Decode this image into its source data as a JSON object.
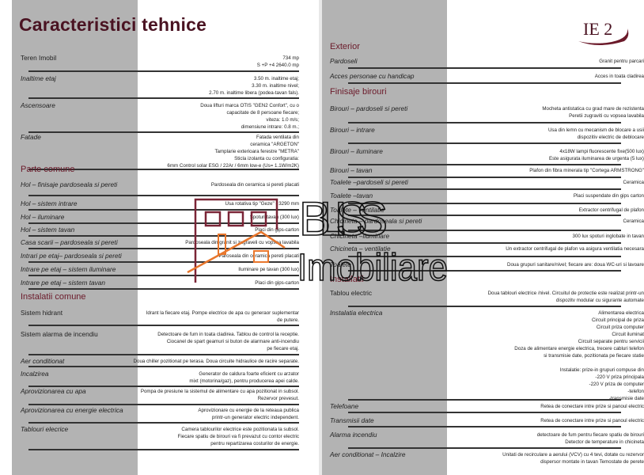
{
  "title": "Caracteristici tehnice",
  "logo_text": "IE 2",
  "watermark": {
    "line1": "BLISS",
    "line2": "Imobiliare",
    "house_color": "#7a2436",
    "roof_color": "#e8762c"
  },
  "colors": {
    "heading": "#6b1a2a",
    "title": "#4a1322",
    "column": "#b3b3b3"
  },
  "left": [
    {
      "label": "Teren Imobil",
      "plain": true,
      "value": [
        "734 mp",
        "S +P +4      2640.0 mp"
      ]
    },
    {
      "label": "Inaltime etaj",
      "value": [
        "3.50 m. inaltime etaj;",
        "3.30 m. inaltime nivel;",
        "2.70 m. inaltime libera (podea-tavan fals)."
      ]
    },
    {
      "label": "Ascensoare",
      "value": [
        "Doua lifturi marca OTIS \"GEN2 Confort\", cu o",
        "capacitate de 8 persoane fiecare;",
        "viteza: 1.0 m/s;",
        "dimensiune intrare: 0.8 m.;"
      ]
    },
    {
      "label": "Fatade",
      "value": [
        "Fatada ventilata din",
        "ceramica \"ARGETON\"",
        "Tamplarie exterioara ferestre \"METRA\"",
        "Sticla izolanta cu configuratia:",
        "6mm Control solar ESG / 22Ar / 6mm low-e (Us= 1.1W/m2K)"
      ]
    },
    {
      "heading": "Parte comune"
    },
    {
      "label": "Hol – finisaje pardoseala si pereti",
      "value": [
        "Pardoseala din ceramica si pereti placati"
      ]
    },
    {
      "label": "Hol – sistem intrare",
      "value": [
        "Usa rotativa tip \"Geze\" - 3290 mm"
      ]
    },
    {
      "label": "Hol – iluminare",
      "value": [
        "Spoturi tavan (300 lux)"
      ]
    },
    {
      "label": "Hol – sistem tavan",
      "value": [
        "Placi din gips-carton"
      ]
    },
    {
      "label": "Casa scarii – pardoseala si pereti",
      "value": [
        "Pardoseala din granit si zugraveli cu vopsea lavabila"
      ]
    },
    {
      "label": "Intrari pe etaj– pardoseala si pereti",
      "value": [
        "Paroseala din ceramica pereti placati"
      ]
    },
    {
      "label": "Intrare pe etaj – sistem iluminare",
      "value": [
        "Iluminare pe tavan (300 lux)"
      ]
    },
    {
      "label": "Intrare pe etaj – sistem tavan",
      "value": [
        "Placi din gips-carton"
      ]
    },
    {
      "heading": "Instalatii comune"
    },
    {
      "label": "Sistem hidrant",
      "plain": true,
      "value": [
        "Idrant la fiecare etaj. Pompe electrice de apa cu generaor suplementar",
        "de putere."
      ]
    },
    {
      "label": "Sistem alarma de incendiu",
      "plain": true,
      "value": [
        "Detectoare de fum in toata cladirea. Tablou de control la receptie.",
        "Ciocanel de spart geamuri si buton de alarmare anti-incendiu",
        "pe fiecare etaj."
      ]
    },
    {
      "label": "Aer conditionat",
      "value": [
        "Doua chiller pozitionat pe terasa. Doua circuite hidraulice de racire separate."
      ]
    },
    {
      "label": "Incalzirea",
      "value": [
        "Generator de caldura foarte eficient cu arzator",
        "mixt (motorina/gaz), pentru producerea apei calde."
      ]
    },
    {
      "label": "Aprovizionarea cu apa",
      "value": [
        "Pompa de presiune la sistemul de alimentare cu apa pozitionat in subsol.",
        "Rezervor prevesut."
      ]
    },
    {
      "label": "Aprovizionarea cu energie electrica",
      "value": [
        "Aprovizionare cu energie de la reteaua publica",
        "printr-un generator electric independent."
      ]
    },
    {
      "label": "Tablouri elecrice",
      "value": [
        "Camera tablourilor electrice este pozitionata la subsol.",
        "Fiecare spatiu de birouri va fi prevazut cu contor electric",
        "pentru repartizarea costurilor de energie."
      ]
    }
  ],
  "right": [
    {
      "heading": "Exterior"
    },
    {
      "label": "Pardoseli",
      "value": [
        "Granit pentru parcari"
      ]
    },
    {
      "label": "Acces personae cu handicap",
      "value": [
        "Acces in toata cladirea"
      ]
    },
    {
      "heading": "Finisaje birouri"
    },
    {
      "label": "Birouri – pardoseli si pereti",
      "value": [
        "Mocheta antistatica  cu grad mare de rezistenta",
        "Peretii zugraviti cu vopsea lavabila"
      ]
    },
    {
      "label": "Birouri – intrare",
      "value": [
        "Usa din lemn cu mecanism de blocare a usii",
        "dispozitiv electric de deblocare"
      ]
    },
    {
      "label": "Birouri – iluminare",
      "value": [
        "4x18W  lampi fluorescente fixe(500 lux)",
        "Este asigurata iluminarea de urgenta (5 lux)"
      ]
    },
    {
      "label": "Birouri – tavan",
      "value": [
        "Plafon din fibra minerala tip \"Cortega ARMSTRONG\""
      ]
    },
    {
      "label": "Toalete –pardoseli si pereti",
      "value": [
        "Ceramica"
      ]
    },
    {
      "label": "Toalete –tavan",
      "value": [
        "Placi suspendate din gips carton"
      ]
    },
    {
      "label": "Toalete – ventilatie",
      "value": [
        "Extractor centrifugal de plafon"
      ]
    },
    {
      "label": "Chicineta – pardoseala si pereti",
      "value": [
        "Ceramica"
      ]
    },
    {
      "label": "Chicineta –iluminare",
      "value": [
        "300 lux spoturi  inglobate in tavan"
      ]
    },
    {
      "label": "Chicineta – ventilatie",
      "value": [
        "Un extractor centrifugal de plafon va asigura ventilatia necesara"
      ]
    },
    {
      "label": "Toalete",
      "value": [
        "Doua grupuri sanitare/nivel; fiecare are: doua WC-uri si lavoare"
      ]
    },
    {
      "heading": "Installatii"
    },
    {
      "label": "Tablou electric",
      "plain": true,
      "value": [
        "Doua tablouri electrice /nivel. Circuitul de  protectie este realizat printr-un",
        "dispozitv modular cu sigurante automate"
      ]
    },
    {
      "label": "Instalatia electrica",
      "value": [
        "Alimentarea electrica",
        "Circuit principal de priza",
        "Circuit  priza computer",
        "Circuit iluminat",
        "Circuit separate pentru  servicii",
        "Doza de alimentare energie electrica, trecere cabluri telefon",
        "si transmisie date, pozitionata pe fiecare statie",
        "",
        "Instalatie: prize-in grupuri compuse din",
        "-220 V priza principala",
        "-220 V priza de computer",
        "-telefon",
        "-transmisie date"
      ]
    },
    {
      "label": "Telefoane",
      "value": [
        "Retea de conectare intre prize si panoul electric"
      ]
    },
    {
      "label": "Transmisii date",
      "value": [
        "Retea de conectare intre prize si panoul electric"
      ]
    },
    {
      "label": "Alarma incendiu",
      "value": [
        "detectoare de fum pentru fiecare spatiu de birouri",
        "Detector de temperature in chicineta"
      ]
    },
    {
      "label": "Aer conditionat – Incalzire",
      "value": [
        "Unitati  de recirculare a aerului (VCV) cu 4 tevi, dotate  cu rezervor",
        "dispersor montate in tavan Temostate de perete"
      ]
    }
  ]
}
